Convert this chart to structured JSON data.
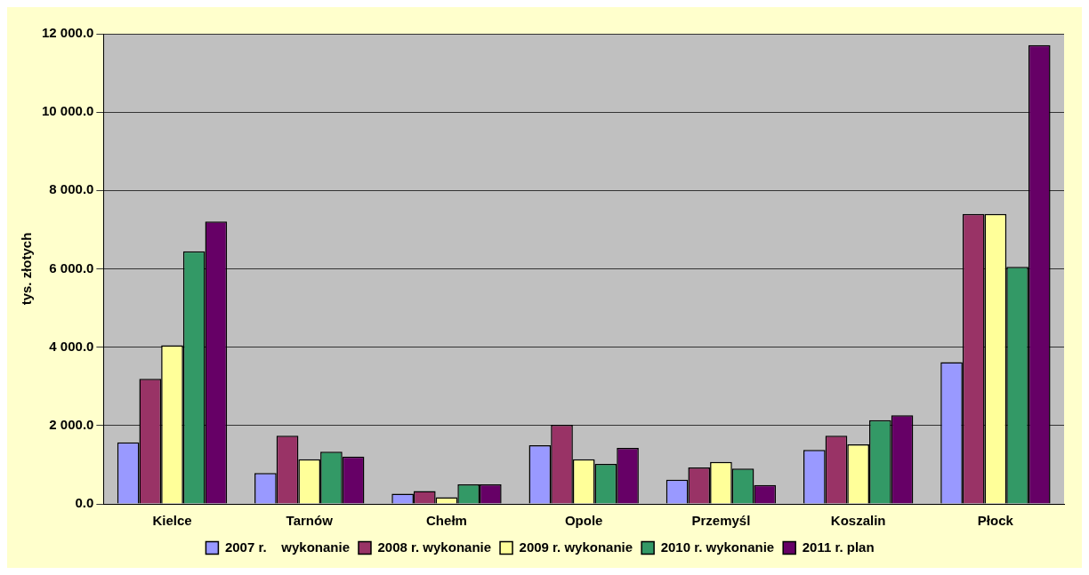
{
  "chart_data": {
    "type": "bar",
    "ylabel": "tys. złotych",
    "categories": [
      "Kielce",
      "Tarnów",
      "Chełm",
      "Opole",
      "Przemyśl",
      "Koszalin",
      "Płock"
    ],
    "series": [
      {
        "name": "2007 r.    wykonanie",
        "color": "#9999ff",
        "values": [
          1570,
          790,
          260,
          1500,
          620,
          1380,
          3620
        ]
      },
      {
        "name": "2008 r. wykonanie",
        "color": "#993366",
        "values": [
          3190,
          1740,
          330,
          2020,
          930,
          1740,
          7400
        ]
      },
      {
        "name": "2009 r. wykonanie",
        "color": "#ffff99",
        "values": [
          4050,
          1140,
          170,
          1140,
          1070,
          1520,
          7400
        ]
      },
      {
        "name": "2010 r. wykonanie",
        "color": "#339966",
        "values": [
          6450,
          1330,
          500,
          1020,
          900,
          2140,
          6050
        ]
      },
      {
        "name": "2011 r. plan",
        "color": "#660066",
        "values": [
          7210,
          1210,
          500,
          1430,
          480,
          2260,
          11710
        ]
      }
    ],
    "ylim": [
      0,
      12000
    ],
    "yticks": [
      {
        "value": 0,
        "label": "0.0"
      },
      {
        "value": 2000,
        "label": "2 000.0"
      },
      {
        "value": 4000,
        "label": "4 000.0"
      },
      {
        "value": 6000,
        "label": "6 000.0"
      },
      {
        "value": 8000,
        "label": "8 000.0"
      },
      {
        "value": 10000,
        "label": "10 000.0"
      },
      {
        "value": 12000,
        "label": "12 000.0"
      }
    ],
    "grid": "y",
    "legend": "bottom"
  }
}
